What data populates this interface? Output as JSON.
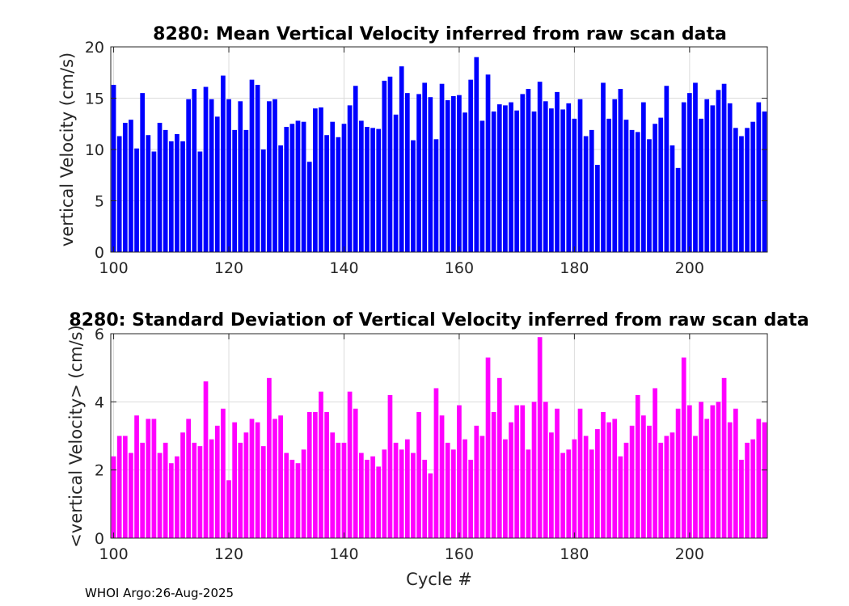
{
  "footer": "WHOI Argo:26-Aug-2025",
  "colors": {
    "mean_bar": "#0000ff",
    "std_bar": "#ff00ff",
    "grid": "#dcdcdc",
    "axis": "#262626"
  },
  "chart_data": [
    {
      "type": "bar",
      "title": "8280: Mean Vertical Velocity inferred from raw scan data",
      "xlabel": "",
      "ylabel": "vertical Velocity (cm/s)",
      "xlim": [
        99.5,
        213.5
      ],
      "ylim": [
        0,
        20
      ],
      "xticks": [
        100,
        120,
        140,
        160,
        180,
        200
      ],
      "yticks": [
        0,
        5,
        10,
        15,
        20
      ],
      "grid": true,
      "x_start": 100,
      "values": [
        16.3,
        11.3,
        12.6,
        12.9,
        10.1,
        15.5,
        11.4,
        9.8,
        12.6,
        11.9,
        10.8,
        11.5,
        10.8,
        14.9,
        15.9,
        9.8,
        16.1,
        14.9,
        13.2,
        17.2,
        14.9,
        11.9,
        14.7,
        11.9,
        16.8,
        16.3,
        10.0,
        14.7,
        14.9,
        10.4,
        12.2,
        12.5,
        12.8,
        12.7,
        8.8,
        14.0,
        14.1,
        11.4,
        12.7,
        11.2,
        12.5,
        14.3,
        16.2,
        12.8,
        12.2,
        12.1,
        12.0,
        16.7,
        17.1,
        13.4,
        18.1,
        15.5,
        10.9,
        15.4,
        16.5,
        15.1,
        11.0,
        16.4,
        14.8,
        15.2,
        15.3,
        13.6,
        16.8,
        19.0,
        12.8,
        17.3,
        13.7,
        14.4,
        14.3,
        14.6,
        13.8,
        15.4,
        15.9,
        13.7,
        16.6,
        14.7,
        14.0,
        15.6,
        13.9,
        14.5,
        13.0,
        14.9,
        11.3,
        11.9,
        8.5,
        16.5,
        13.0,
        14.9,
        15.9,
        12.9,
        11.9,
        11.7,
        14.6,
        11.0,
        12.5,
        13.1,
        16.2,
        10.4,
        8.2,
        14.6,
        15.5,
        16.5,
        13.0,
        14.9,
        14.3,
        15.8,
        16.4,
        14.5,
        12.1,
        11.3,
        12.1,
        12.7,
        14.6,
        13.7
      ]
    },
    {
      "type": "bar",
      "title": "8280: Standard Deviation of Vertical Velocity inferred from raw scan data",
      "xlabel": "Cycle #",
      "ylabel": "<vertical Velocity> (cm/s)",
      "xlim": [
        99.5,
        213.5
      ],
      "ylim": [
        0,
        6
      ],
      "xticks": [
        100,
        120,
        140,
        160,
        180,
        200
      ],
      "yticks": [
        0,
        2,
        4,
        6
      ],
      "grid": true,
      "x_start": 100,
      "values": [
        2.4,
        3.0,
        3.0,
        2.5,
        3.6,
        2.8,
        3.5,
        3.5,
        2.5,
        2.8,
        2.2,
        2.4,
        3.1,
        3.5,
        2.8,
        2.7,
        4.6,
        2.9,
        3.3,
        3.8,
        1.7,
        3.4,
        2.8,
        3.1,
        3.5,
        3.4,
        2.7,
        4.7,
        3.5,
        3.6,
        2.5,
        2.3,
        2.2,
        2.6,
        3.7,
        3.7,
        4.3,
        3.7,
        3.1,
        2.8,
        2.8,
        4.3,
        3.8,
        2.5,
        2.3,
        2.4,
        2.1,
        2.6,
        4.2,
        2.8,
        2.6,
        2.9,
        2.5,
        3.7,
        2.3,
        1.9,
        4.4,
        3.6,
        2.8,
        2.6,
        3.9,
        2.9,
        2.3,
        3.3,
        3.0,
        5.3,
        3.7,
        4.7,
        2.9,
        3.4,
        3.9,
        3.9,
        2.6,
        4.0,
        5.9,
        4.0,
        3.1,
        3.8,
        2.5,
        2.6,
        2.9,
        3.8,
        3.0,
        2.6,
        3.2,
        3.7,
        3.4,
        3.5,
        2.4,
        2.8,
        3.3,
        4.2,
        3.6,
        3.3,
        4.4,
        2.8,
        3.0,
        3.1,
        3.8,
        5.3,
        3.9,
        3.0,
        4.0,
        3.5,
        3.9,
        4.0,
        4.7,
        3.4,
        3.8,
        2.3,
        2.8,
        2.9,
        3.5,
        3.4
      ]
    }
  ]
}
